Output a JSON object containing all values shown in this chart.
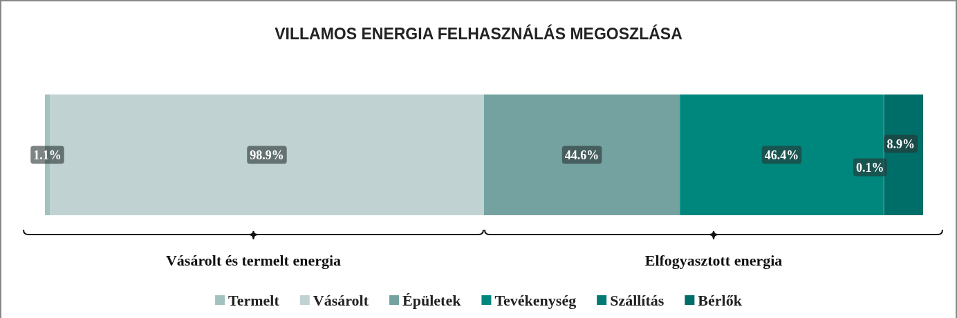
{
  "chart_data": {
    "type": "bar",
    "orientation": "horizontal",
    "stacked": true,
    "title": "VILLAMOS ENERGIA FELHASZNÁLÁS MEGOSZLÁSA",
    "categories": [
      null
    ],
    "legend": "bottom",
    "series": [
      {
        "name": "Termelt",
        "color": "#a3c2bf",
        "values": [
          1.1
        ],
        "value_labels": [
          "1.1%"
        ]
      },
      {
        "name": "Vásárolt",
        "color": "#c0d3d2",
        "values": [
          98.9
        ],
        "value_labels": [
          "98.9%"
        ]
      },
      {
        "name": "Épületek",
        "color": "#74a2a0",
        "values": [
          44.6
        ],
        "value_labels": [
          "44.6%"
        ]
      },
      {
        "name": "Tevékenység",
        "color": "#00877d",
        "values": [
          46.4
        ],
        "value_labels": [
          "46.4%"
        ]
      },
      {
        "name": "Szállítás",
        "color": "#007a73",
        "values": [
          0.1
        ],
        "value_labels": [
          "0.1%"
        ]
      },
      {
        "name": "Bérlők",
        "color": "#006e68",
        "values": [
          8.9
        ],
        "value_labels": [
          "8.9%"
        ]
      }
    ],
    "annotations": [
      "Vásárolt és termelt energia",
      "Elfogyasztott energia"
    ]
  }
}
